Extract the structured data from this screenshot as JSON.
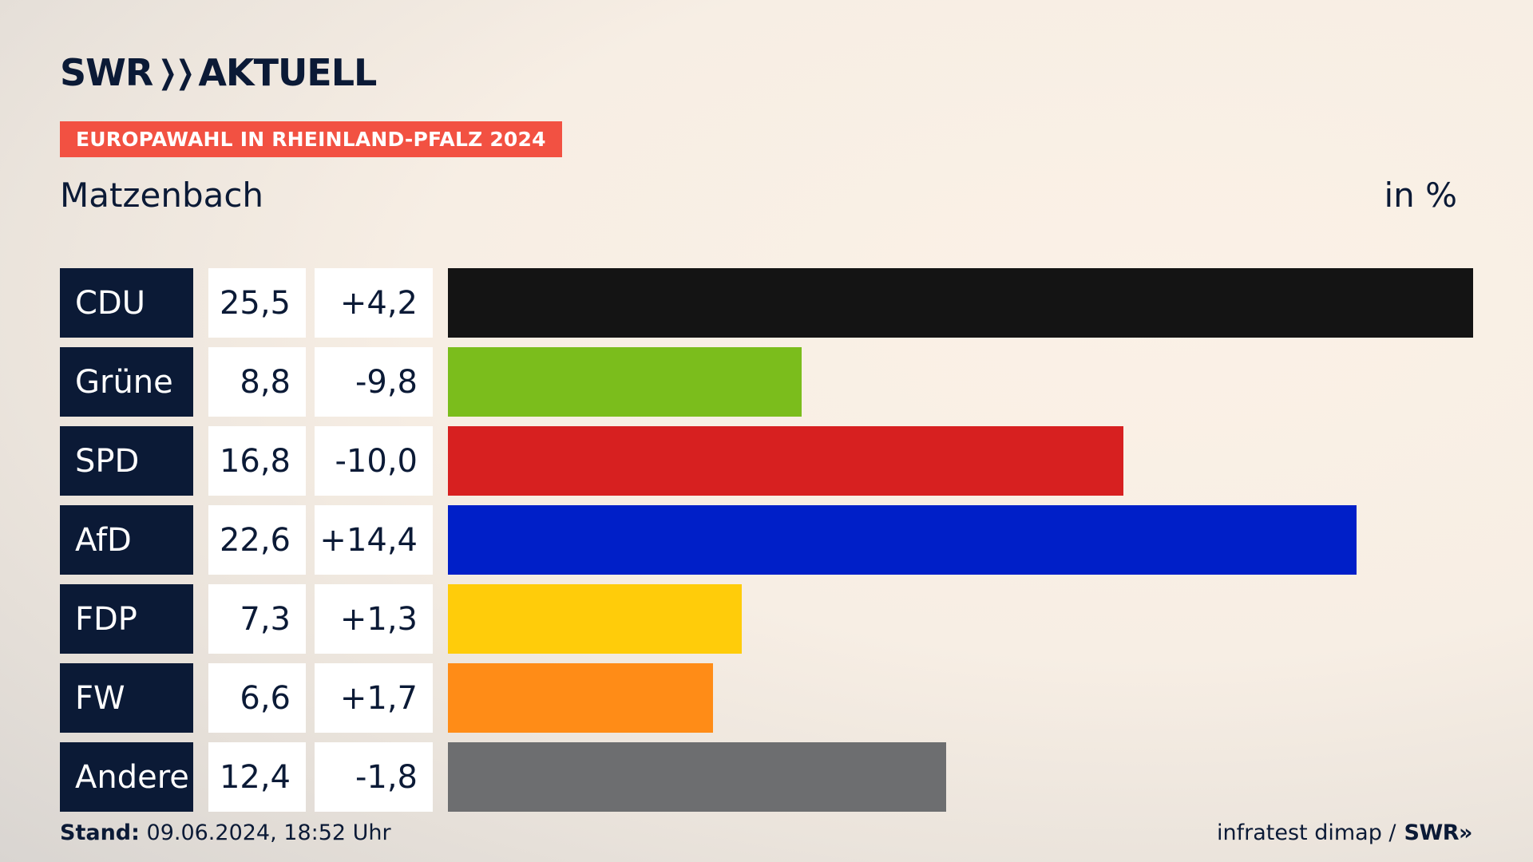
{
  "brand": {
    "name_a": "SWR",
    "chevrons": "»",
    "name_b": "AKTUELL"
  },
  "badge": "EUROPAWAHL IN RHEINLAND-PFALZ 2024",
  "place": "Matzenbach",
  "unit": "in %",
  "footer": {
    "stand_label": "Stand:",
    "stand_value": "09.06.2024, 18:52 Uhr",
    "source": "infratest dimap /",
    "source_brand": "SWR»"
  },
  "chart_data": {
    "type": "bar",
    "orientation": "horizontal",
    "categories": [
      "CDU",
      "Grüne",
      "SPD",
      "AfD",
      "FDP",
      "FW",
      "Andere"
    ],
    "values": [
      25.5,
      8.8,
      16.8,
      22.6,
      7.3,
      6.6,
      12.4
    ],
    "value_labels": [
      "25,5",
      "8,8",
      "16,8",
      "22,6",
      "7,3",
      "6,6",
      "12,4"
    ],
    "diff_labels": [
      "+4,2",
      "-9,8",
      "-10,0",
      "+14,4",
      "+1,3",
      "+1,7",
      "-1,8"
    ],
    "diffs": [
      4.2,
      -9.8,
      -10.0,
      14.4,
      1.3,
      1.7,
      -1.8
    ],
    "colors": [
      "#141414",
      "#7bbd1c",
      "#d72020",
      "#001fc8",
      "#ffcc0a",
      "#ff8c17",
      "#6d6e70"
    ],
    "xlim": [
      0,
      25.5
    ]
  }
}
